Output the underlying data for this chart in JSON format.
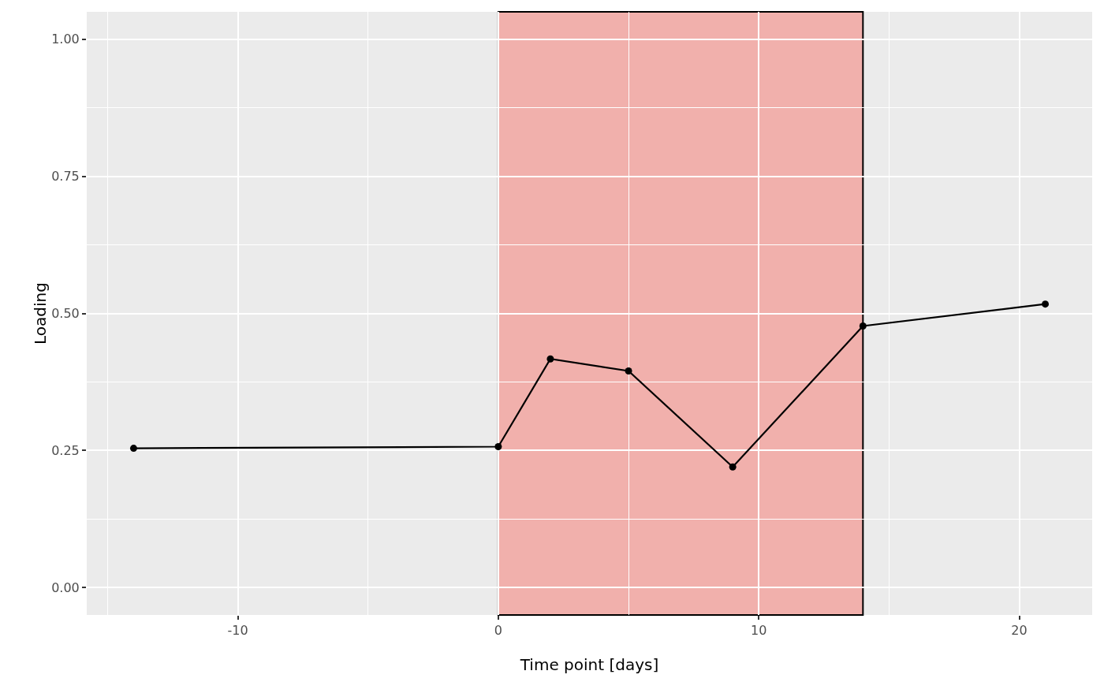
{
  "chart_data": {
    "type": "line",
    "xlabel": "Time point [days]",
    "ylabel": "Loading",
    "x": [
      -14,
      0,
      2,
      5,
      9,
      14,
      21
    ],
    "series": [
      {
        "color": "#000000",
        "values": [
          0.254,
          0.257,
          0.417,
          0.395,
          0.22,
          0.477,
          0.517
        ]
      }
    ],
    "xlim": [
      -15.8,
      22.8
    ],
    "xticks": [
      -10,
      0,
      10,
      20
    ],
    "ylim": [
      -0.05,
      1.05
    ],
    "yticks": [
      {
        "value": 0,
        "label": "0.00"
      },
      {
        "value": 0.25,
        "label": "0.25"
      },
      {
        "value": 0.5,
        "label": "0.50"
      },
      {
        "value": 0.75,
        "label": "0.75"
      },
      {
        "value": 1,
        "label": "1.00"
      }
    ],
    "bands": [
      {
        "axis": "x",
        "from": 0,
        "to": 14,
        "color": "#f8766d"
      }
    ],
    "grid": true,
    "marker": "circle",
    "line_style": "solid"
  }
}
